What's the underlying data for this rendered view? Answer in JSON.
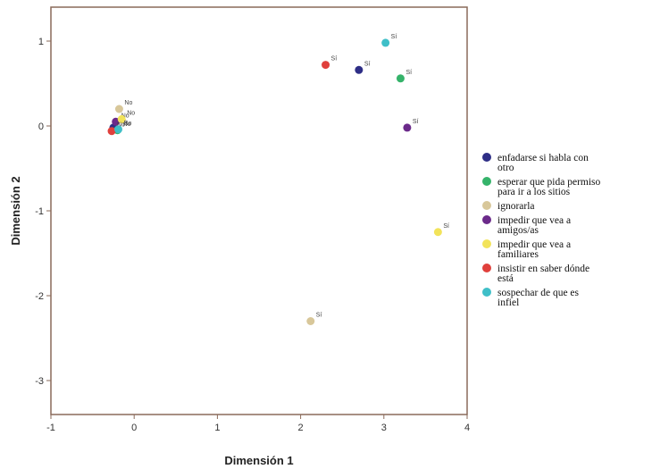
{
  "chart_data": {
    "type": "scatter",
    "xlabel": "Dimensión 1",
    "ylabel": "Dimensión 2",
    "xlim": [
      -1,
      4
    ],
    "ylim": [
      -3.4,
      1.4
    ],
    "xticks": [
      -1,
      0,
      1,
      2,
      3,
      4
    ],
    "xtick_labels": [
      "-1",
      "0",
      "1",
      "2",
      "3",
      "4"
    ],
    "yticks": [
      -3,
      -2,
      -1,
      0,
      1
    ],
    "ytick_labels": [
      "-3",
      "-2",
      "-1",
      "0",
      "1"
    ],
    "grid": false,
    "legend_position": "right",
    "series": [
      {
        "name": "enfadarse si habla con otro",
        "color": "#2e2e86",
        "points": [
          {
            "x": 2.7,
            "y": 0.66,
            "label": "Sí"
          },
          {
            "x": -0.25,
            "y": -0.02,
            "label": "No"
          }
        ]
      },
      {
        "name": "esperar que pida permiso para ir a los sitios",
        "color": "#35b36a",
        "points": [
          {
            "x": 3.2,
            "y": 0.56,
            "label": "Sí"
          },
          {
            "x": -0.2,
            "y": -0.05,
            "label": "No"
          }
        ]
      },
      {
        "name": "ignorarla",
        "color": "#d8c79a",
        "points": [
          {
            "x": 2.12,
            "y": -2.3,
            "label": "Sí"
          },
          {
            "x": -0.18,
            "y": 0.2,
            "label": "No"
          }
        ]
      },
      {
        "name": "impedir que vea a amigos/as",
        "color": "#6b2a8a",
        "points": [
          {
            "x": 3.28,
            "y": -0.02,
            "label": "Sí"
          },
          {
            "x": -0.22,
            "y": 0.05,
            "label": "No"
          }
        ]
      },
      {
        "name": "impedir que vea a familiares",
        "color": "#f2e35a",
        "points": [
          {
            "x": 3.65,
            "y": -1.25,
            "label": "Sí"
          },
          {
            "x": -0.15,
            "y": 0.08,
            "label": "No"
          }
        ]
      },
      {
        "name": "insistir en saber dónde está",
        "color": "#e0403c",
        "points": [
          {
            "x": 2.3,
            "y": 0.72,
            "label": "Sí"
          },
          {
            "x": -0.27,
            "y": -0.06,
            "label": "No"
          }
        ]
      },
      {
        "name": "sospechar de que es infiel",
        "color": "#3fbfc8",
        "points": [
          {
            "x": 3.02,
            "y": 0.98,
            "label": "Sí"
          },
          {
            "x": -0.19,
            "y": -0.04,
            "label": "No"
          }
        ]
      }
    ]
  }
}
